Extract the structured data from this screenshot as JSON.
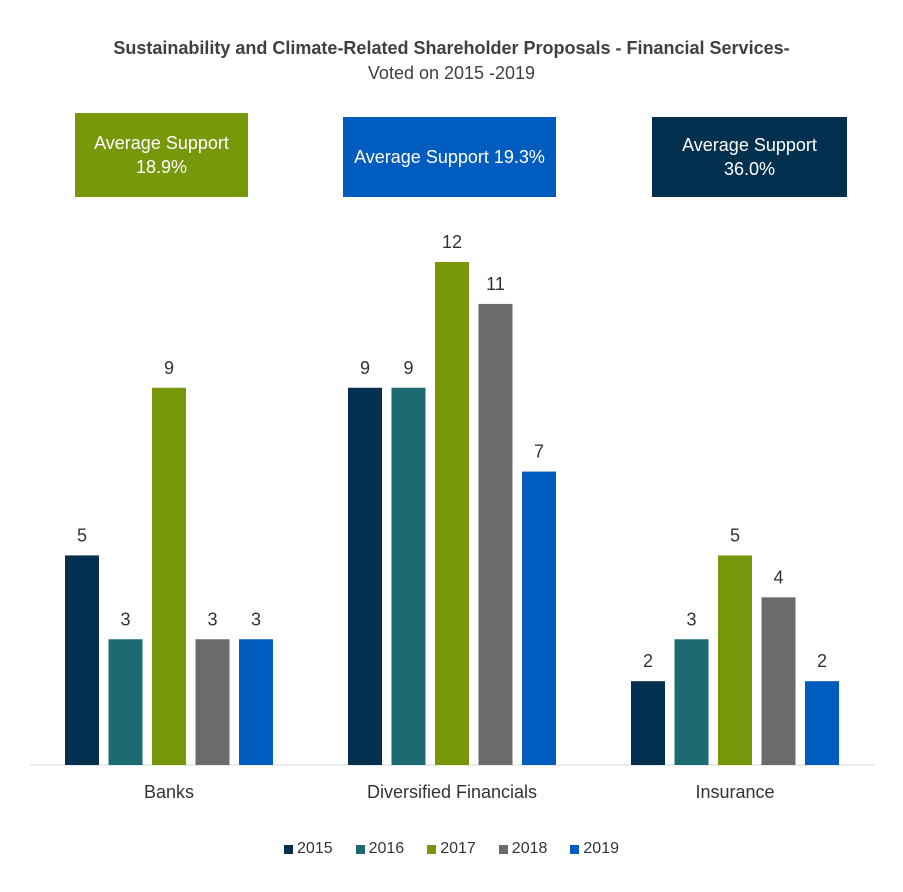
{
  "title": "Sustainability and Climate-Related Shareholder Proposals - Financial Services-",
  "subtitle": "Voted on 2015 -2019",
  "support_boxes": [
    {
      "text": "Average Support 18.9%",
      "color": "#76980a"
    },
    {
      "text": "Average Support 19.3%",
      "color": "#005cbf"
    },
    {
      "text": "Average Support 36.0%",
      "color": "#04304f"
    }
  ],
  "chart_data": {
    "type": "bar",
    "title": "Sustainability and Climate-Related Shareholder Proposals - Financial Services- Voted on 2015 -2019",
    "categories": [
      "Banks",
      "Diversified Financials",
      "Insurance"
    ],
    "series": [
      {
        "name": "2015",
        "color": "#04304f",
        "values": [
          5,
          9,
          2
        ]
      },
      {
        "name": "2016",
        "color": "#1c6b72",
        "values": [
          3,
          9,
          3
        ]
      },
      {
        "name": "2017",
        "color": "#76980a",
        "values": [
          9,
          12,
          5
        ]
      },
      {
        "name": "2018",
        "color": "#6b6b6b",
        "values": [
          3,
          11,
          4
        ]
      },
      {
        "name": "2019",
        "color": "#005cbf",
        "values": [
          3,
          7,
          2
        ]
      }
    ],
    "ylim": [
      0,
      12
    ],
    "data_labels": true,
    "grid": false,
    "legend_position": "bottom"
  }
}
